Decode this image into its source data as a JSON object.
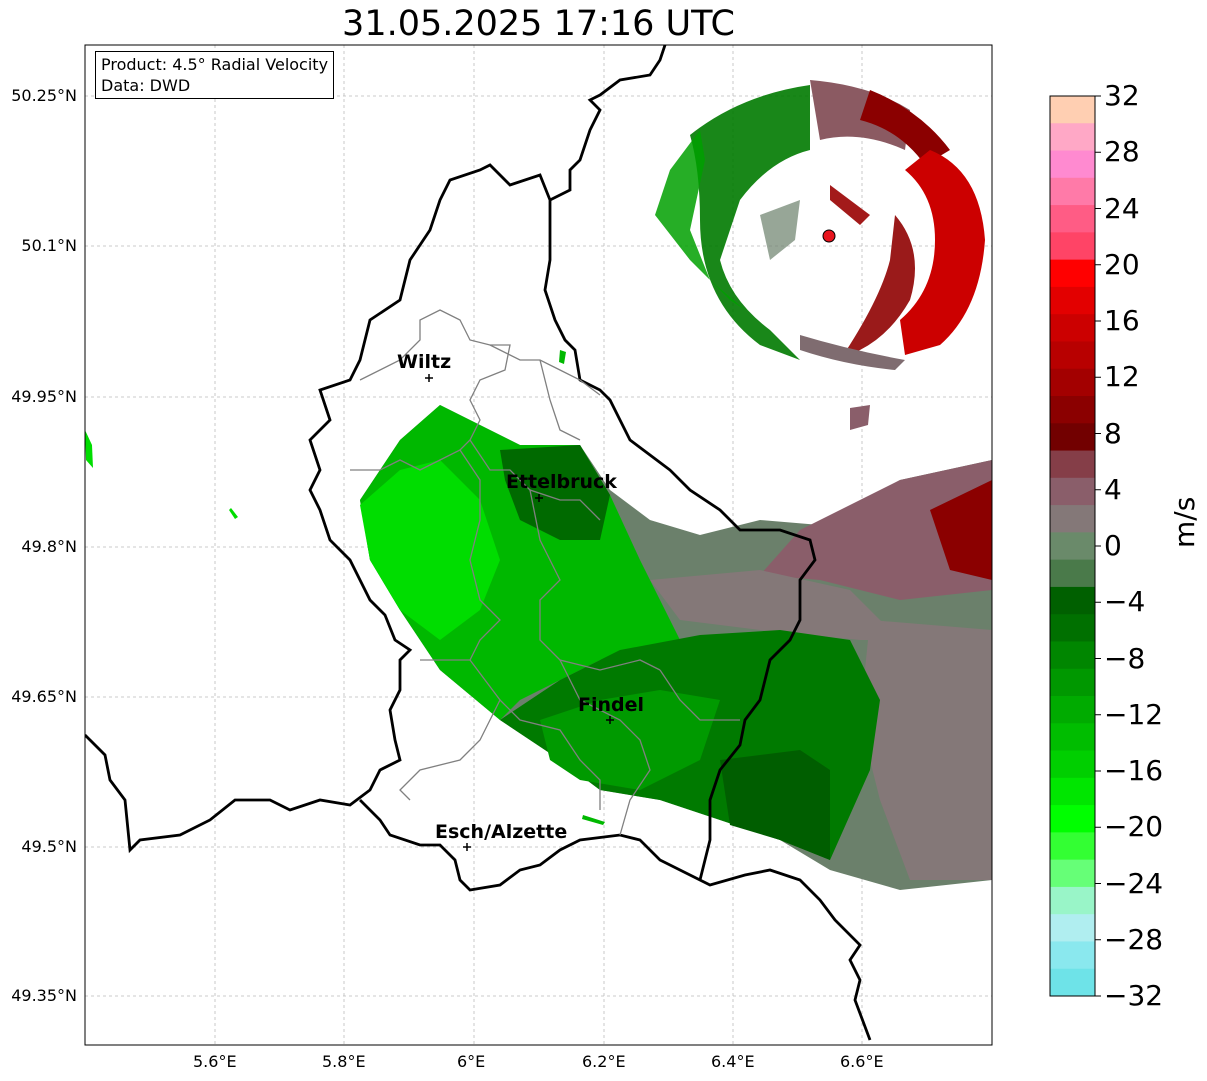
{
  "title": "31.05.2025 17:16 UTC",
  "info": {
    "product": "Product: 4.5° Radial Velocity",
    "source": "Data: DWD"
  },
  "axes": {
    "lat_ticks": [
      "50.25°N",
      "50.1°N",
      "49.95°N",
      "49.8°N",
      "49.65°N",
      "49.5°N",
      "49.35°N"
    ],
    "lon_ticks": [
      "5.6°E",
      "5.8°E",
      "6°E",
      "6.2°E",
      "6.4°E",
      "6.6°E"
    ],
    "grid": "on"
  },
  "cities": [
    {
      "name": "Wiltz"
    },
    {
      "name": "Ettelbruck"
    },
    {
      "name": "Findel"
    },
    {
      "name": "Esch/Alzette"
    }
  ],
  "colorbar": {
    "unit": "m/s",
    "ticks": [
      "32",
      "28",
      "24",
      "20",
      "16",
      "12",
      "8",
      "4",
      "0",
      "−4",
      "−8",
      "−12",
      "−16",
      "−20",
      "−24",
      "−28",
      "−32"
    ],
    "colors_top_to_bottom": [
      "#ffcfb2",
      "#ffa8c6",
      "#ff8ad0",
      "#ff7aa8",
      "#ff5c85",
      "#ff4466",
      "#ff0000",
      "#e30000",
      "#cc0000",
      "#b80000",
      "#a30000",
      "#8b0000",
      "#720000",
      "#853e48",
      "#8a5e6a",
      "#847878",
      "#6a8a6a",
      "#4a7a4a",
      "#006000",
      "#007000",
      "#008600",
      "#009800",
      "#00ab00",
      "#00bd00",
      "#00cf00",
      "#00e600",
      "#00ff00",
      "#33ff33",
      "#66ff77",
      "#99f5c8",
      "#b0eef0",
      "#8ae8ee",
      "#6ee3e8"
    ],
    "colors": {
      "inbound_dark": "#006a00",
      "inbound_bright": "#00e600",
      "near_zero": "#6b806b",
      "outbound_dark": "#8b0000",
      "outbound_bright": "#dd0000",
      "radar_site": "#e8141e"
    }
  }
}
